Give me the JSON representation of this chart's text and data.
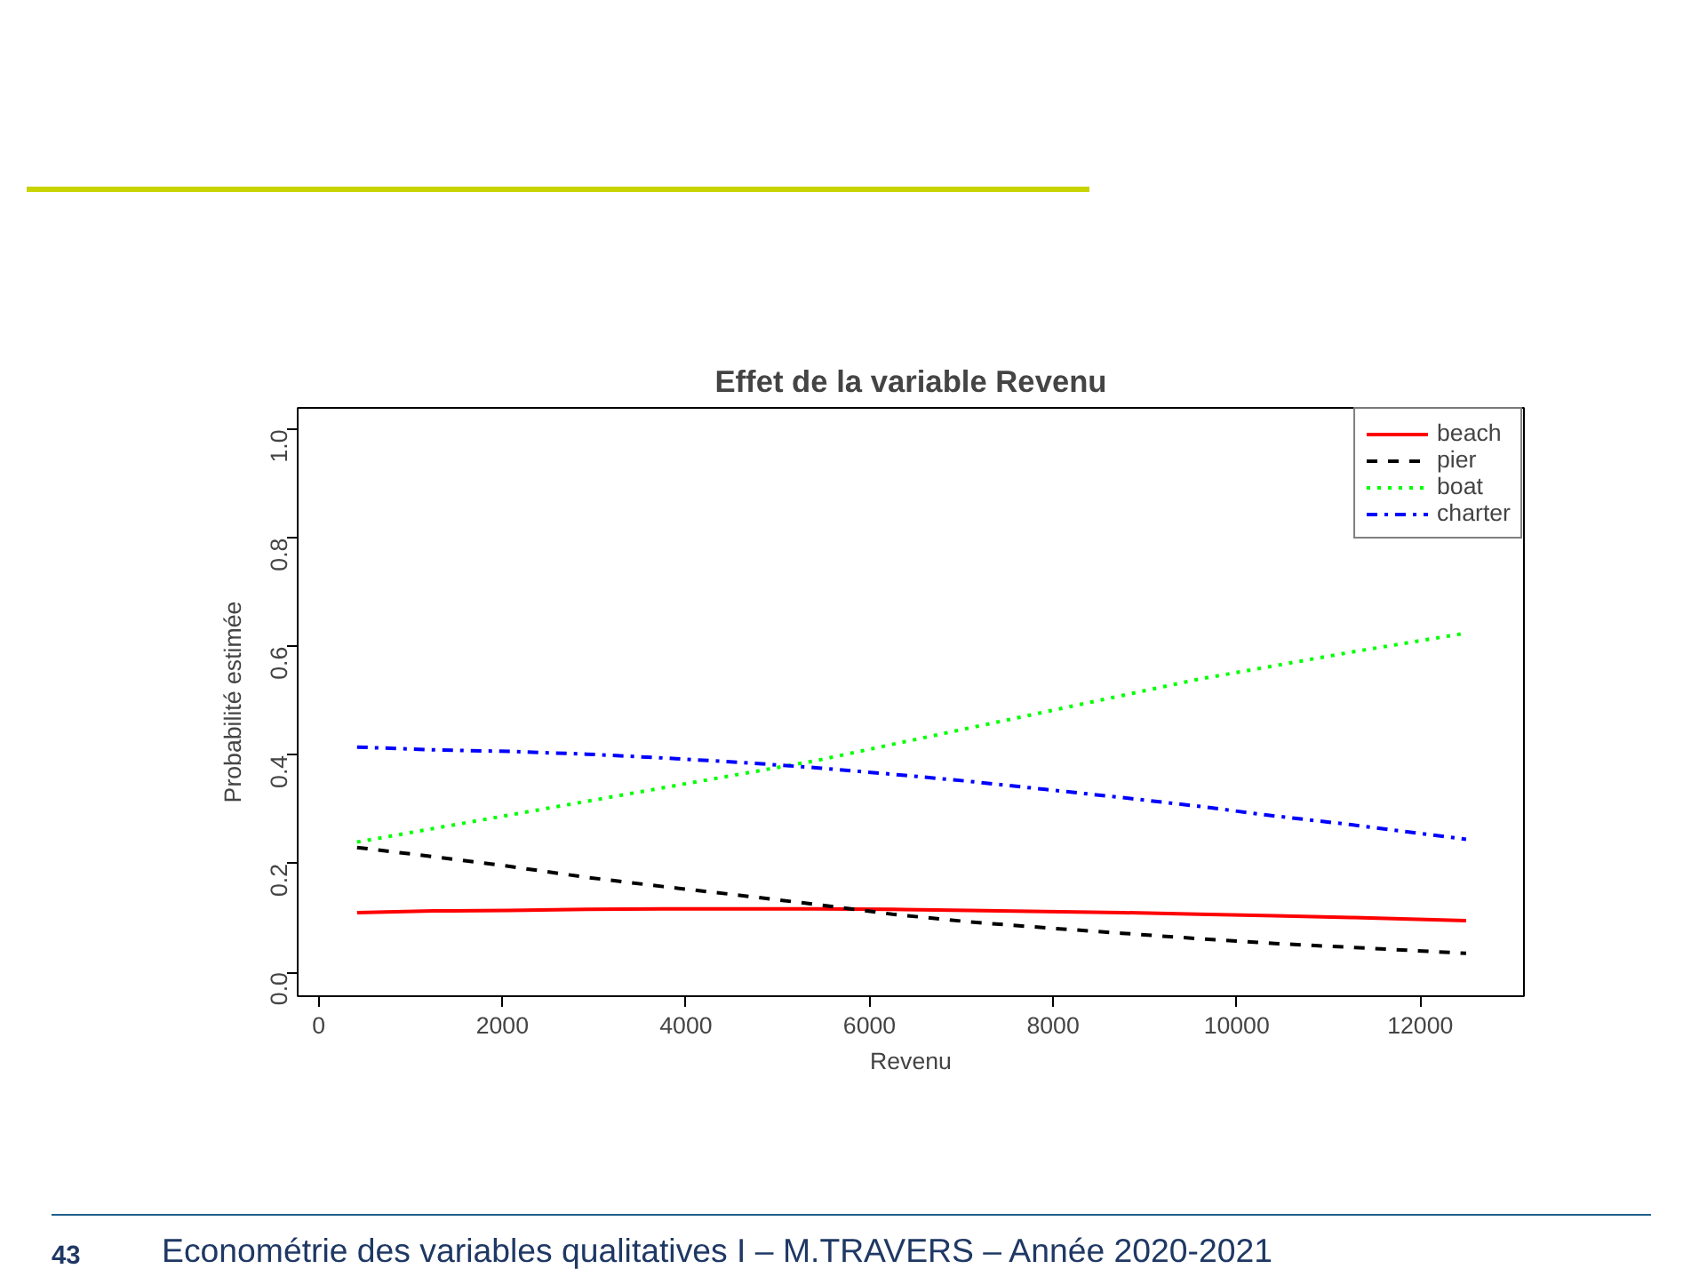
{
  "chart_data": {
    "type": "line",
    "title": "Effet de la variable Revenu",
    "xlabel": "Revenu",
    "ylabel": "Probabilité estimée",
    "x": [
      417,
      1250,
      2083,
      2917,
      3750,
      4583,
      5417,
      6250,
      7083,
      7917,
      8750,
      9583,
      10417,
      11250,
      12500
    ],
    "series": [
      {
        "name": "beach",
        "color": "#ff0000",
        "line_style": "solid",
        "values": [
          0.11,
          0.113,
          0.114,
          0.116,
          0.117,
          0.117,
          0.117,
          0.116,
          0.114,
          0.112,
          0.11,
          0.107,
          0.104,
          0.101,
          0.095
        ]
      },
      {
        "name": "pier",
        "color": "#000000",
        "line_style": "dashed",
        "values": [
          0.23,
          0.213,
          0.195,
          0.175,
          0.158,
          0.142,
          0.125,
          0.107,
          0.093,
          0.082,
          0.072,
          0.062,
          0.053,
          0.046,
          0.035
        ]
      },
      {
        "name": "boat",
        "color": "#00ff00",
        "line_style": "dotted",
        "values": [
          0.24,
          0.265,
          0.29,
          0.315,
          0.34,
          0.365,
          0.39,
          0.42,
          0.45,
          0.48,
          0.51,
          0.54,
          0.565,
          0.59,
          0.625
        ]
      },
      {
        "name": "charter",
        "color": "#0000ff",
        "line_style": "dashdot",
        "values": [
          0.415,
          0.41,
          0.407,
          0.402,
          0.395,
          0.387,
          0.377,
          0.365,
          0.352,
          0.337,
          0.322,
          0.306,
          0.288,
          0.272,
          0.245
        ]
      }
    ],
    "xlim": [
      -230,
      13130
    ],
    "ylim": [
      -0.044,
      1.04
    ],
    "xticks": [
      0,
      2000,
      4000,
      6000,
      8000,
      10000,
      12000
    ],
    "yticks": [
      {
        "value": 0,
        "label": "0.0"
      },
      {
        "value": 0.2,
        "label": "0.2"
      },
      {
        "value": 0.4,
        "label": "0.4"
      },
      {
        "value": 0.6,
        "label": "0.6"
      },
      {
        "value": 0.8,
        "label": "0.8"
      },
      {
        "value": 1,
        "label": "1.0"
      }
    ],
    "grid": false,
    "legend": "top right",
    "marker": "none",
    "annotations": [
      "43",
      "Econométrie des variables qualitatives I – M.TRAVERS – Année 2020-2021"
    ]
  }
}
